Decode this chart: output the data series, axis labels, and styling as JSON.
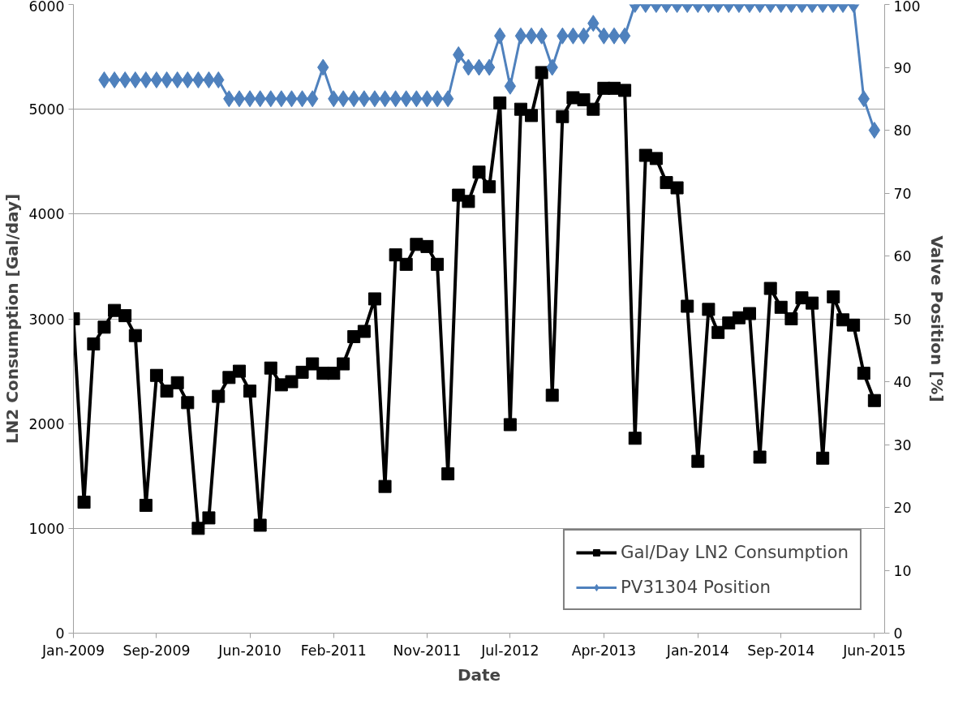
{
  "chart_data": {
    "type": "line",
    "xlabel": "Date",
    "ylabel": "LN2 Consumption [Gal/day]",
    "y2label": "Valve Position [%]",
    "x": [
      "2009-01",
      "2009-02",
      "2009-03",
      "2009-04",
      "2009-05",
      "2009-06",
      "2009-07",
      "2009-08",
      "2009-09",
      "2009-10",
      "2009-11",
      "2009-12",
      "2010-01",
      "2010-02",
      "2010-03",
      "2010-04",
      "2010-05",
      "2010-06",
      "2010-07",
      "2010-08",
      "2010-09",
      "2010-10",
      "2010-11",
      "2010-12",
      "2011-01",
      "2011-02",
      "2011-03",
      "2011-04",
      "2011-05",
      "2011-06",
      "2011-07",
      "2011-08",
      "2011-09",
      "2011-10",
      "2011-11",
      "2011-12",
      "2012-01",
      "2012-02",
      "2012-03",
      "2012-04",
      "2012-05",
      "2012-06",
      "2012-07",
      "2012-08",
      "2012-09",
      "2012-10",
      "2012-11",
      "2012-12",
      "2013-01",
      "2013-02",
      "2013-03",
      "2013-04",
      "2013-05",
      "2013-06",
      "2013-07",
      "2013-08",
      "2013-09",
      "2013-10",
      "2013-11",
      "2013-12",
      "2014-01",
      "2014-02",
      "2014-03",
      "2014-04",
      "2014-05",
      "2014-06",
      "2014-07",
      "2014-08",
      "2014-09",
      "2014-10",
      "2014-11",
      "2014-12",
      "2015-01",
      "2015-02",
      "2015-03",
      "2015-04",
      "2015-05",
      "2015-06"
    ],
    "series": [
      {
        "name": "Gal/Day LN2 Consumption",
        "color": "#000000",
        "marker": "square",
        "values": [
          3000,
          1250,
          2760,
          2920,
          3080,
          3030,
          2840,
          1220,
          2460,
          2310,
          2390,
          2200,
          1000,
          1100,
          2260,
          2440,
          2500,
          2310,
          1030,
          2530,
          2370,
          2400,
          2490,
          2570,
          2480,
          2480,
          2570,
          2830,
          2880,
          3190,
          1400,
          3610,
          3520,
          3710,
          3690,
          3520,
          1520,
          4180,
          4120,
          4400,
          4260,
          5060,
          1990,
          5000,
          4940,
          5350,
          2270,
          4930,
          5110,
          5090,
          5000,
          5200,
          5200,
          5180,
          1860,
          4560,
          4530,
          4300,
          4250,
          3120,
          1640,
          3090,
          2870,
          2960,
          3010,
          3050,
          1680,
          3290,
          3110,
          3000,
          3200,
          3150,
          1670,
          3210,
          2990,
          2940,
          2480,
          2220
        ]
      },
      {
        "name": "PV31304 Position",
        "color": "#4f81bd",
        "marker": "diamond",
        "axis": "y2",
        "values": [
          null,
          null,
          null,
          88,
          88,
          88,
          88,
          88,
          88,
          88,
          88,
          88,
          88,
          88,
          88,
          85,
          85,
          85,
          85,
          85,
          85,
          85,
          85,
          85,
          90,
          85,
          85,
          85,
          85,
          85,
          85,
          85,
          85,
          85,
          85,
          85,
          85,
          92,
          90,
          90,
          90,
          95,
          87,
          95,
          95,
          95,
          90,
          95,
          95,
          95,
          97,
          95,
          95,
          95,
          100,
          100,
          100,
          100,
          100,
          100,
          100,
          100,
          100,
          100,
          100,
          100,
          100,
          100,
          100,
          100,
          100,
          100,
          100,
          100,
          100,
          100,
          85,
          80
        ]
      }
    ],
    "xlim": [
      "2009-01",
      "2015-07"
    ],
    "xticks": [
      {
        "value": "2009-01",
        "label": "Jan-2009"
      },
      {
        "value": "2009-09",
        "label": "Sep-2009"
      },
      {
        "value": "2010-06",
        "label": "Jun-2010"
      },
      {
        "value": "2011-02",
        "label": "Feb-2011"
      },
      {
        "value": "2011-11",
        "label": "Nov-2011"
      },
      {
        "value": "2012-07",
        "label": "Jul-2012"
      },
      {
        "value": "2013-04",
        "label": "Apr-2013"
      },
      {
        "value": "2014-01",
        "label": "Jan-2014"
      },
      {
        "value": "2014-09",
        "label": "Sep-2014"
      },
      {
        "value": "2015-06",
        "label": "Jun-2015"
      }
    ],
    "ylim": [
      0,
      6000
    ],
    "yticks": [
      0,
      1000,
      2000,
      3000,
      4000,
      5000,
      6000
    ],
    "y2lim": [
      0,
      100
    ],
    "y2ticks": [
      0,
      10,
      20,
      30,
      40,
      50,
      60,
      70,
      80,
      90,
      100
    ],
    "grid": "y",
    "legend": "bottom right",
    "line_style": "solid"
  }
}
